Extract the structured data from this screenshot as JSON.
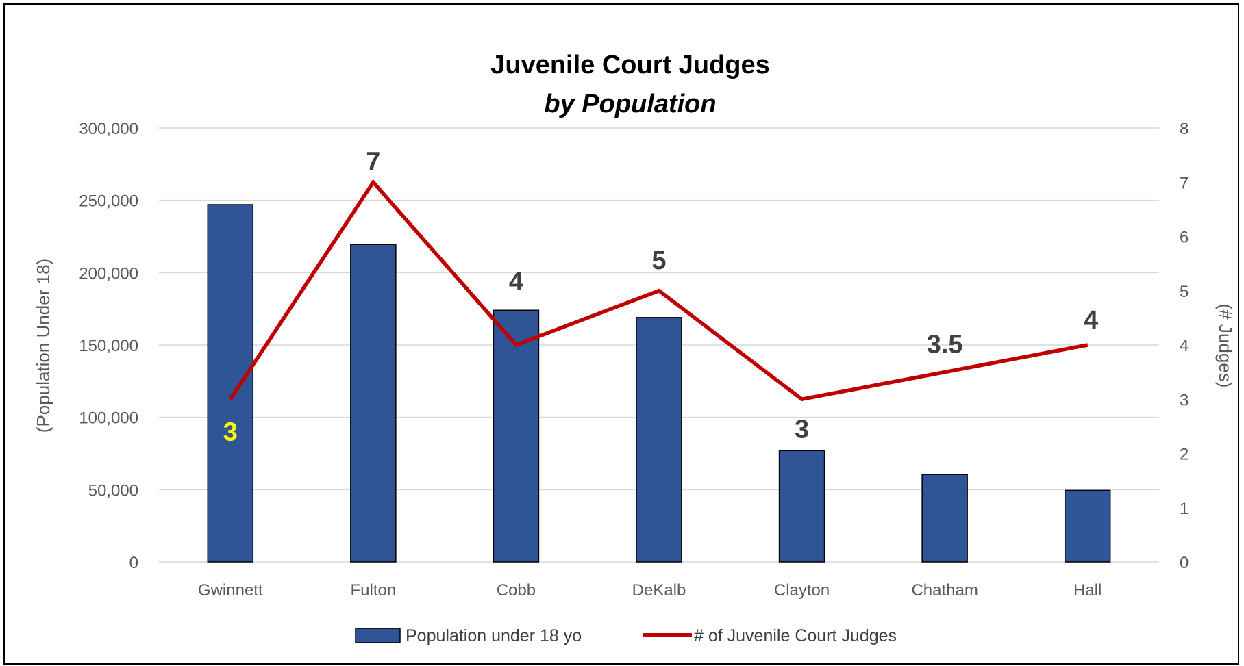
{
  "chart_data": {
    "type": "bar",
    "title": "Juvenile Court Judges",
    "subtitle": "by Population",
    "categories": [
      "Gwinnett",
      "Fulton",
      "Cobb",
      "DeKalb",
      "Clayton",
      "Chatham",
      "Hall"
    ],
    "series": [
      {
        "name": "Population under 18 yo",
        "type": "bar",
        "axis": "left",
        "color": "#2F5597",
        "values": [
          247000,
          219500,
          174000,
          169000,
          77000,
          60500,
          49500
        ]
      },
      {
        "name": "# of Juvenile Court Judges",
        "type": "line",
        "axis": "right",
        "color": "#C00000",
        "values": [
          3,
          7,
          4,
          5,
          3,
          3.5,
          4
        ],
        "labels": [
          "3",
          "7",
          "4",
          "5",
          "3",
          "3.5",
          "4"
        ],
        "label_colors": [
          "#FFFF00",
          "#404040",
          "#404040",
          "#404040",
          "#404040",
          "#404040",
          "#404040"
        ]
      }
    ],
    "ylabel": "(Population Under 18)",
    "y2label": "(# Judges)",
    "ylim": [
      0,
      300000
    ],
    "y2lim": [
      0,
      8
    ],
    "yticks": [
      "0",
      "50,000",
      "100,000",
      "150,000",
      "200,000",
      "250,000",
      "300,000"
    ],
    "y2ticks": [
      "0",
      "1",
      "2",
      "3",
      "4",
      "5",
      "6",
      "7",
      "8"
    ],
    "grid": true,
    "legend": "bottom"
  }
}
